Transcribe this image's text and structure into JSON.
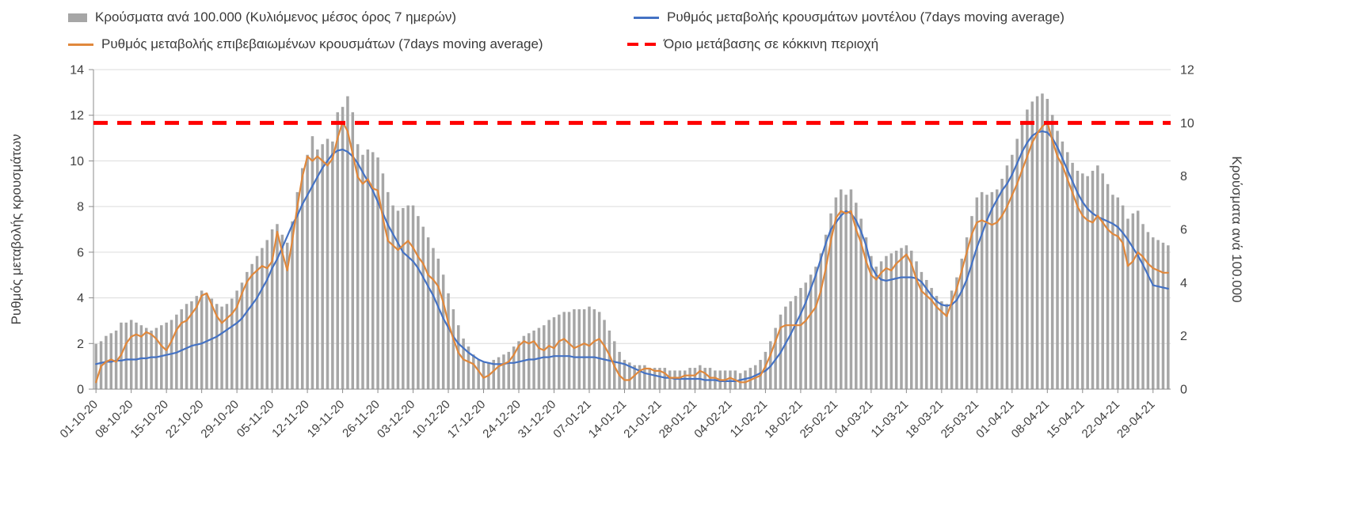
{
  "legend": {
    "bars": "Κρούσματα ανά 100.000 (Κυλιόμενος μέσος όρος 7 ημερών)",
    "model": "Ρυθμός μεταβολής κρουσμάτων μοντέλου (7days moving average)",
    "confirmed": "Ρυθμός μεταβολής επιβεβαιωμένων κρουσμάτων (7days moving average)",
    "threshold": "Όριο μετάβασης σε κόκκινη περιοχή"
  },
  "axes": {
    "left_title": "Ρυθμός μεταβολής κρουσμάτων",
    "right_title": "Κρούσματα ανά 100.000",
    "left_ticks": [
      0,
      2,
      4,
      6,
      8,
      10,
      12,
      14
    ],
    "right_ticks": [
      0,
      2,
      4,
      6,
      8,
      10,
      12
    ]
  },
  "chart_data": {
    "type": "bar+line combo, daily values, weekly x ticks",
    "left_ylim": [
      0,
      14
    ],
    "right_ylim": [
      0,
      12
    ],
    "colors": {
      "grid": "#dcdcdc",
      "axis": "#8c8c8c",
      "text": "#404040"
    },
    "x_tick_labels": [
      "01-10-20",
      "08-10-20",
      "15-10-20",
      "22-10-20",
      "29-10-20",
      "05-11-20",
      "12-11-20",
      "19-11-20",
      "26-11-20",
      "03-12-20",
      "10-12-20",
      "17-12-20",
      "24-12-20",
      "31-12-20",
      "07-01-21",
      "14-01-21",
      "21-01-21",
      "28-01-21",
      "04-02-21",
      "11-02-21",
      "18-02-21",
      "25-02-21",
      "04-03-21",
      "11-03-21",
      "18-03-21",
      "25-03-21",
      "01-04-21",
      "08-04-21",
      "15-04-21",
      "22-04-21",
      "29-04-21"
    ],
    "x_tick_every_days": 7,
    "series": [
      {
        "key": "cases_per_100k",
        "name": "Κρούσματα ανά 100.000 (Κυλιόμενος μέσος όρος 7 ημερών)",
        "type": "bar",
        "axis": "right",
        "color": "#a6a6a6",
        "values": [
          1.7,
          1.8,
          2.0,
          2.1,
          2.2,
          2.5,
          2.5,
          2.6,
          2.5,
          2.4,
          2.3,
          2.2,
          2.3,
          2.4,
          2.5,
          2.6,
          2.8,
          3.0,
          3.2,
          3.3,
          3.5,
          3.7,
          3.6,
          3.4,
          3.2,
          3.1,
          3.2,
          3.4,
          3.7,
          4.0,
          4.4,
          4.7,
          5.0,
          5.3,
          5.6,
          6.0,
          6.2,
          5.8,
          5.5,
          6.3,
          7.4,
          8.3,
          8.8,
          9.5,
          9.0,
          9.2,
          9.4,
          9.3,
          10.4,
          10.6,
          11.0,
          10.4,
          9.2,
          8.8,
          9.0,
          8.9,
          8.7,
          8.1,
          7.4,
          6.9,
          6.7,
          6.8,
          6.9,
          6.9,
          6.5,
          6.1,
          5.7,
          5.3,
          4.9,
          4.3,
          3.6,
          3.0,
          2.4,
          1.9,
          1.6,
          1.3,
          1.1,
          1.0,
          1.0,
          1.1,
          1.2,
          1.3,
          1.4,
          1.6,
          1.8,
          2.0,
          2.1,
          2.2,
          2.3,
          2.4,
          2.6,
          2.7,
          2.8,
          2.9,
          2.9,
          3.0,
          3.0,
          3.0,
          3.1,
          3.0,
          2.9,
          2.6,
          2.2,
          1.8,
          1.4,
          1.1,
          1.0,
          0.9,
          0.9,
          0.9,
          0.8,
          0.8,
          0.8,
          0.8,
          0.7,
          0.7,
          0.7,
          0.7,
          0.8,
          0.8,
          0.9,
          0.8,
          0.8,
          0.7,
          0.7,
          0.7,
          0.7,
          0.7,
          0.6,
          0.7,
          0.8,
          0.9,
          1.1,
          1.4,
          1.8,
          2.3,
          2.8,
          3.1,
          3.3,
          3.5,
          3.8,
          4.0,
          4.3,
          4.6,
          5.1,
          5.8,
          6.6,
          7.2,
          7.5,
          7.3,
          7.5,
          7.0,
          6.4,
          5.7,
          5.0,
          4.6,
          4.8,
          5.0,
          5.1,
          5.2,
          5.3,
          5.4,
          5.2,
          4.8,
          4.4,
          4.1,
          3.8,
          3.5,
          3.3,
          3.2,
          3.7,
          4.2,
          4.9,
          5.7,
          6.5,
          7.2,
          7.4,
          7.3,
          7.4,
          7.5,
          7.9,
          8.4,
          8.8,
          9.4,
          10.0,
          10.5,
          10.8,
          11.0,
          11.1,
          10.9,
          10.3,
          9.7,
          9.3,
          8.9,
          8.5,
          8.2,
          8.1,
          8.0,
          8.2,
          8.4,
          8.1,
          7.7,
          7.3,
          7.2,
          6.9,
          6.4,
          6.6,
          6.7,
          6.2,
          5.9,
          5.7,
          5.6,
          5.5,
          5.4
        ]
      },
      {
        "key": "model_rate",
        "name": "Ρυθμός μεταβολής κρουσμάτων μοντέλου (7days moving average)",
        "type": "line",
        "axis": "left",
        "color": "#4472c4",
        "values": [
          1.1,
          1.15,
          1.2,
          1.2,
          1.25,
          1.25,
          1.3,
          1.3,
          1.3,
          1.35,
          1.35,
          1.4,
          1.4,
          1.45,
          1.5,
          1.55,
          1.6,
          1.7,
          1.8,
          1.9,
          1.95,
          2.0,
          2.1,
          2.2,
          2.3,
          2.45,
          2.6,
          2.75,
          2.9,
          3.1,
          3.4,
          3.7,
          4.0,
          4.4,
          4.8,
          5.3,
          5.7,
          6.2,
          6.7,
          7.2,
          7.6,
          8.1,
          8.5,
          8.9,
          9.3,
          9.7,
          10.0,
          10.3,
          10.45,
          10.5,
          10.4,
          10.2,
          9.9,
          9.5,
          9.1,
          8.7,
          8.2,
          7.7,
          7.2,
          6.8,
          6.4,
          6.0,
          5.8,
          5.6,
          5.3,
          4.9,
          4.5,
          4.1,
          3.6,
          3.1,
          2.7,
          2.3,
          2.0,
          1.8,
          1.6,
          1.45,
          1.3,
          1.2,
          1.15,
          1.1,
          1.1,
          1.1,
          1.15,
          1.15,
          1.2,
          1.25,
          1.3,
          1.3,
          1.35,
          1.4,
          1.4,
          1.45,
          1.45,
          1.45,
          1.45,
          1.4,
          1.4,
          1.4,
          1.4,
          1.4,
          1.35,
          1.3,
          1.25,
          1.2,
          1.15,
          1.1,
          1.0,
          0.9,
          0.8,
          0.7,
          0.65,
          0.6,
          0.55,
          0.5,
          0.5,
          0.45,
          0.45,
          0.45,
          0.45,
          0.45,
          0.45,
          0.4,
          0.4,
          0.4,
          0.35,
          0.35,
          0.35,
          0.35,
          0.4,
          0.45,
          0.5,
          0.6,
          0.7,
          0.8,
          1.0,
          1.3,
          1.6,
          2.0,
          2.4,
          2.85,
          3.3,
          3.8,
          4.4,
          5.0,
          5.7,
          6.4,
          7.0,
          7.3,
          7.6,
          7.8,
          7.7,
          7.4,
          6.9,
          6.3,
          5.4,
          5.0,
          4.8,
          4.75,
          4.8,
          4.85,
          4.9,
          4.9,
          4.9,
          4.85,
          4.7,
          4.4,
          4.1,
          3.85,
          3.7,
          3.65,
          3.7,
          3.9,
          4.3,
          4.8,
          5.5,
          6.2,
          6.8,
          7.4,
          7.9,
          8.3,
          8.7,
          9.0,
          9.4,
          9.9,
          10.4,
          10.8,
          11.1,
          11.25,
          11.3,
          11.25,
          11.0,
          10.6,
          10.1,
          9.6,
          9.1,
          8.6,
          8.2,
          7.9,
          7.7,
          7.55,
          7.45,
          7.35,
          7.25,
          7.1,
          6.85,
          6.55,
          6.2,
          5.85,
          5.45,
          5.0,
          4.55,
          4.5,
          4.45,
          4.4
        ]
      },
      {
        "key": "confirmed_rate",
        "name": "Ρυθμός μεταβολής επιβεβαιωμένων κρουσμάτων (7days moving average)",
        "type": "line",
        "axis": "left",
        "color": "#e0883c",
        "values": [
          0.3,
          1.0,
          1.2,
          1.3,
          1.2,
          1.5,
          2.0,
          2.3,
          2.4,
          2.3,
          2.5,
          2.4,
          2.2,
          1.9,
          1.7,
          2.1,
          2.6,
          2.9,
          3.0,
          3.3,
          3.6,
          4.1,
          4.2,
          3.7,
          3.2,
          2.9,
          3.1,
          3.3,
          3.6,
          4.2,
          4.7,
          5.0,
          5.2,
          5.4,
          5.3,
          5.6,
          6.9,
          6.0,
          5.2,
          6.5,
          8.0,
          9.3,
          10.2,
          10.0,
          10.2,
          10.0,
          9.8,
          10.1,
          11.0,
          11.7,
          11.3,
          10.3,
          9.3,
          9.0,
          9.2,
          8.8,
          8.7,
          7.5,
          6.5,
          6.3,
          6.1,
          6.3,
          6.5,
          6.2,
          5.8,
          5.5,
          5.0,
          4.8,
          4.5,
          3.8,
          2.9,
          2.2,
          1.6,
          1.3,
          1.2,
          1.1,
          0.8,
          0.5,
          0.6,
          0.8,
          1.0,
          1.1,
          1.2,
          1.5,
          1.9,
          2.1,
          2.0,
          2.1,
          1.8,
          1.7,
          1.9,
          1.8,
          2.1,
          2.2,
          2.0,
          1.8,
          1.9,
          2.0,
          1.9,
          2.1,
          2.2,
          1.9,
          1.5,
          1.0,
          0.6,
          0.4,
          0.4,
          0.6,
          0.8,
          0.9,
          0.9,
          0.8,
          0.8,
          0.7,
          0.5,
          0.5,
          0.5,
          0.6,
          0.6,
          0.6,
          0.8,
          0.7,
          0.5,
          0.5,
          0.4,
          0.4,
          0.5,
          0.4,
          0.3,
          0.3,
          0.4,
          0.5,
          0.6,
          1.0,
          1.5,
          2.1,
          2.7,
          2.8,
          2.8,
          2.8,
          2.8,
          3.0,
          3.3,
          3.6,
          4.3,
          5.3,
          6.5,
          7.5,
          7.8,
          7.7,
          7.8,
          7.0,
          6.4,
          5.6,
          5.0,
          4.8,
          5.1,
          5.3,
          5.2,
          5.5,
          5.7,
          5.9,
          5.5,
          4.8,
          4.3,
          4.1,
          3.9,
          3.6,
          3.4,
          3.2,
          3.8,
          4.4,
          5.2,
          6.0,
          6.8,
          7.3,
          7.4,
          7.3,
          7.2,
          7.3,
          7.6,
          8.0,
          8.5,
          9.0,
          9.6,
          10.2,
          10.8,
          11.2,
          11.5,
          11.7,
          10.9,
          10.2,
          9.8,
          9.2,
          8.6,
          8.0,
          7.6,
          7.4,
          7.3,
          7.6,
          7.3,
          7.0,
          6.8,
          6.7,
          6.4,
          5.4,
          5.6,
          6.0,
          5.8,
          5.5,
          5.3,
          5.2,
          5.1,
          5.1
        ]
      },
      {
        "key": "red_threshold",
        "name": "Όριο μετάβασης σε κόκκινη περιοχή",
        "type": "threshold",
        "axis": "right",
        "value": 10,
        "color": "#ff0000"
      }
    ]
  }
}
